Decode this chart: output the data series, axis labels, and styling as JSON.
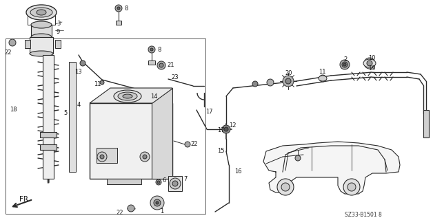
{
  "bg_color": "#ffffff",
  "diagram_code": "SZ33-B1501 8",
  "figsize": [
    6.28,
    3.2
  ],
  "dpi": 100,
  "line_color": "#2a2a2a",
  "label_fs": 6.0,
  "lw": 0.7
}
